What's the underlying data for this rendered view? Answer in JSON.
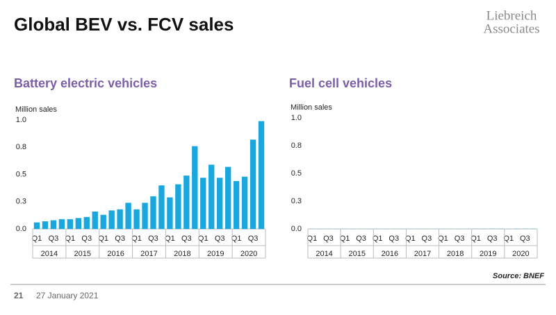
{
  "page": {
    "title": "Global BEV vs. FCV sales",
    "logo": [
      "Liebreich",
      "Associates"
    ],
    "source": "Source: BNEF",
    "page_number": "21",
    "date": "27 January 2021"
  },
  "chart_data": [
    {
      "type": "bar",
      "title": "Battery electric vehicles",
      "y_label": "Million sales",
      "color": "#1aa7dd",
      "categories": [
        "Q1",
        null,
        "Q3",
        null,
        "Q1",
        null,
        "Q3",
        null,
        "Q1",
        null,
        "Q3",
        null,
        "Q1",
        null,
        "Q3",
        null,
        "Q1",
        null,
        "Q3",
        null,
        "Q1",
        null,
        "Q3",
        null,
        "Q1",
        null,
        "Q3",
        null
      ],
      "years": [
        "2014",
        "2015",
        "2016",
        "2017",
        "2018",
        "2019",
        "2020"
      ],
      "values": [
        0.06,
        0.07,
        0.08,
        0.09,
        0.09,
        0.1,
        0.11,
        0.16,
        0.13,
        0.17,
        0.18,
        0.24,
        0.18,
        0.24,
        0.3,
        0.4,
        0.29,
        0.41,
        0.49,
        0.76,
        0.47,
        0.59,
        0.47,
        0.57,
        0.44,
        0.48,
        0.82,
        0.99
      ],
      "ylim": [
        0,
        1
      ],
      "yticks": [
        {
          "value": 0,
          "label": "0.0"
        },
        {
          "value": 0.25,
          "label": "0.3"
        },
        {
          "value": 0.5,
          "label": "0.5"
        },
        {
          "value": 0.75,
          "label": "0.8"
        },
        {
          "value": 1,
          "label": "1.0"
        }
      ]
    },
    {
      "type": "bar",
      "title": "Fuel cell vehicles",
      "y_label": "Million sales",
      "color": "#1aa7dd",
      "categories": [
        "Q1",
        null,
        "Q3",
        null,
        "Q1",
        null,
        "Q3",
        null,
        "Q1",
        null,
        "Q3",
        null,
        "Q1",
        null,
        "Q3",
        null,
        "Q1",
        null,
        "Q3",
        null,
        "Q1",
        null,
        "Q3",
        null,
        "Q1",
        null,
        "Q3",
        null
      ],
      "years": [
        "2014",
        "2015",
        "2016",
        "2017",
        "2018",
        "2019",
        "2020"
      ],
      "values": [
        0.001,
        0.001,
        0.001,
        0.001,
        0.001,
        0.001,
        0.001,
        0.001,
        0.001,
        0.001,
        0.001,
        0.001,
        0.001,
        0.001,
        0.001,
        0.001,
        0.001,
        0.001,
        0.001,
        0.001,
        0.002,
        0.002,
        0.002,
        0.002,
        0.001,
        0.002,
        0.002,
        0.002
      ],
      "ylim": [
        0,
        1
      ],
      "yticks": [
        {
          "value": 0,
          "label": "0.0"
        },
        {
          "value": 0.25,
          "label": "0.3"
        },
        {
          "value": 0.5,
          "label": "0.5"
        },
        {
          "value": 0.75,
          "label": "0.8"
        },
        {
          "value": 1,
          "label": "1.0"
        }
      ]
    }
  ]
}
